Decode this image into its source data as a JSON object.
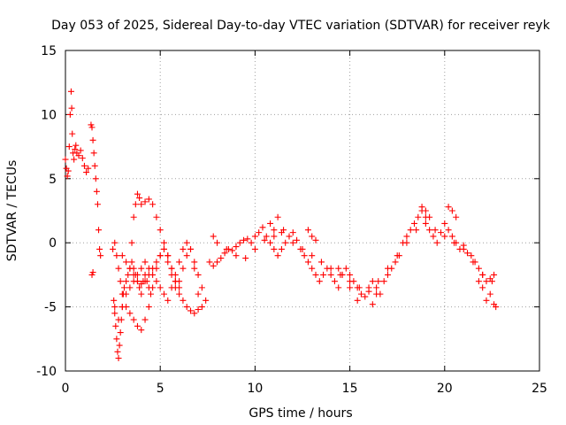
{
  "chart_data": {
    "type": "scatter",
    "title": "Day 053 of 2025, Sidereal Day-to-day VTEC variation (SDTVAR) for receiver reyk",
    "xlabel": "GPS time / hours",
    "ylabel": "SDTVAR / TECUs",
    "xlim": [
      0,
      25
    ],
    "ylim": [
      -10,
      15
    ],
    "xticks": [
      0,
      5,
      10,
      15,
      20,
      25
    ],
    "yticks": [
      -10,
      -5,
      0,
      5,
      10,
      15
    ],
    "grid": true,
    "marker": "+",
    "color": "#ff0000",
    "series": [
      {
        "name": "SDTVAR",
        "x": [
          0.0,
          0.05,
          0.1,
          0.15,
          0.2,
          0.25,
          0.3,
          0.33,
          0.36,
          0.4,
          0.45,
          0.5,
          0.55,
          0.6,
          0.7,
          0.8,
          0.9,
          1.0,
          1.1,
          1.2,
          1.35,
          1.4,
          1.45,
          1.5,
          1.55,
          1.6,
          1.65,
          1.7,
          1.75,
          1.8,
          1.85,
          1.4,
          1.45,
          2.5,
          2.55,
          2.6,
          2.65,
          2.7,
          2.75,
          2.8,
          2.85,
          2.9,
          2.95,
          3.0,
          3.05,
          3.1,
          3.2,
          3.3,
          3.4,
          3.5,
          3.6,
          3.7,
          3.8,
          3.9,
          4.0,
          4.1,
          4.2,
          4.3,
          4.4,
          4.5,
          2.6,
          2.7,
          2.8,
          2.9,
          3.0,
          3.2,
          3.4,
          3.6,
          3.8,
          4.0,
          4.2,
          4.4,
          4.6,
          4.8,
          5.0,
          5.2,
          5.4,
          5.6,
          5.8,
          6.0,
          6.2,
          6.4,
          6.6,
          6.8,
          7.0,
          7.2,
          3.5,
          3.6,
          3.7,
          3.8,
          3.9,
          4.0,
          4.2,
          4.4,
          4.6,
          4.8,
          5.0,
          5.2,
          5.4,
          5.6,
          5.8,
          6.0,
          6.2,
          6.4,
          6.6,
          6.8,
          7.0,
          2.6,
          2.8,
          3.0,
          3.2,
          3.4,
          3.6,
          3.8,
          4.0,
          4.2,
          4.4,
          4.6,
          4.8,
          5.0,
          5.2,
          5.4,
          5.6,
          5.8,
          6.0,
          6.2,
          6.4,
          6.6,
          6.8,
          7.0,
          7.2,
          7.4,
          3.0,
          3.2,
          3.4,
          3.6,
          3.8,
          4.0,
          4.2,
          4.4,
          4.6,
          4.8,
          5.0,
          5.2,
          5.4,
          5.6,
          5.8,
          6.0,
          7.6,
          7.8,
          8.0,
          8.2,
          8.4,
          8.6,
          8.8,
          9.0,
          9.2,
          9.4,
          9.6,
          9.8,
          10.0,
          10.2,
          10.4,
          10.6,
          10.8,
          11.0,
          11.2,
          11.4,
          11.6,
          11.8,
          12.0,
          12.2,
          12.4,
          12.6,
          12.8,
          13.0,
          13.2,
          13.4,
          13.6,
          13.8,
          14.0,
          14.2,
          14.4,
          14.6,
          14.8,
          15.0,
          15.2,
          15.4,
          15.6,
          15.8,
          16.0,
          16.2,
          16.4,
          16.6,
          16.8,
          17.0,
          17.2,
          17.4,
          17.6,
          17.8,
          18.0,
          18.2,
          18.4,
          18.6,
          18.8,
          19.0,
          19.2,
          19.4,
          19.6,
          19.8,
          20.0,
          20.2,
          20.4,
          20.6,
          20.8,
          21.0,
          21.2,
          21.4,
          21.6,
          21.8,
          22.0,
          22.2,
          22.4,
          22.6,
          7.8,
          8.0,
          8.5,
          9.0,
          9.5,
          10.0,
          10.5,
          11.0,
          11.5,
          12.0,
          12.5,
          13.0,
          13.5,
          14.0,
          14.5,
          15.0,
          15.5,
          16.0,
          16.5,
          17.0,
          17.5,
          18.0,
          18.5,
          19.0,
          19.5,
          20.0,
          20.5,
          21.0,
          21.5,
          22.0,
          22.5,
          10.8,
          11.0,
          11.2,
          11.4,
          12.8,
          13.0,
          13.2,
          14.4,
          14.6,
          15.0,
          15.4,
          16.2,
          16.4,
          18.8,
          19.0,
          19.2,
          20.2,
          20.4,
          20.6,
          21.8,
          22.0,
          22.2,
          22.4,
          22.6,
          22.7
        ],
        "y": [
          6.5,
          5.8,
          5.2,
          5.6,
          7.5,
          10.0,
          11.8,
          10.5,
          8.5,
          7.0,
          6.5,
          7.3,
          7.6,
          7.0,
          6.8,
          7.2,
          6.6,
          6.0,
          5.5,
          5.8,
          9.2,
          9.0,
          8.0,
          7.0,
          6.0,
          5.0,
          4.0,
          3.0,
          1.0,
          -0.5,
          -1.0,
          -2.5,
          -2.3,
          -0.5,
          -4.5,
          -5.5,
          -6.5,
          -7.5,
          -8.5,
          -9.0,
          -8.0,
          -7.0,
          -6.0,
          -5.0,
          -4.0,
          -3.5,
          -3.0,
          -2.5,
          -2.0,
          -1.5,
          -2.0,
          -2.5,
          -3.0,
          -3.5,
          -4.0,
          -3.0,
          -2.5,
          -3.0,
          -3.5,
          -4.0,
          0.0,
          -1.0,
          -2.0,
          -3.0,
          -4.0,
          -5.0,
          -5.5,
          -6.0,
          -6.5,
          -6.8,
          -6.0,
          -5.0,
          -3.5,
          -2.0,
          -1.0,
          -0.5,
          -1.5,
          -2.5,
          -3.5,
          -3.0,
          -2.0,
          -1.0,
          -0.5,
          -2.0,
          -4.0,
          -5.0,
          0.0,
          2.0,
          3.0,
          3.8,
          3.5,
          3.0,
          3.2,
          3.4,
          3.0,
          2.0,
          1.0,
          0.0,
          -1.0,
          -2.0,
          -3.0,
          -4.0,
          -4.5,
          -5.0,
          -5.3,
          -5.5,
          -5.2,
          -5.0,
          -6.0,
          -5.0,
          -4.0,
          -3.5,
          -3.0,
          -2.5,
          -2.0,
          -1.5,
          -2.0,
          -2.5,
          -3.0,
          -3.5,
          -4.0,
          -4.5,
          -3.5,
          -2.5,
          -1.5,
          -0.5,
          0.0,
          -0.5,
          -1.5,
          -2.5,
          -3.5,
          -4.5,
          -1.0,
          -1.5,
          -2.0,
          -2.5,
          -3.0,
          -3.2,
          -3.0,
          -2.5,
          -2.0,
          -1.5,
          -1.0,
          -0.5,
          -1.0,
          -2.0,
          -3.0,
          -3.5,
          -1.5,
          -1.8,
          -1.5,
          -1.2,
          -0.8,
          -0.5,
          -0.6,
          -0.3,
          0.0,
          0.2,
          0.3,
          0.0,
          0.5,
          0.8,
          1.2,
          0.5,
          0.0,
          -0.5,
          -1.0,
          -0.5,
          0.0,
          0.5,
          0.8,
          0.2,
          -0.5,
          -1.0,
          -1.5,
          -2.0,
          -2.5,
          -3.0,
          -2.5,
          -2.0,
          -2.5,
          -3.0,
          -3.5,
          -2.5,
          -2.0,
          -2.5,
          -3.0,
          -3.5,
          -4.0,
          -4.2,
          -3.5,
          -3.0,
          -3.5,
          -4.0,
          -3.0,
          -2.5,
          -2.0,
          -1.5,
          -1.0,
          0.0,
          0.5,
          1.0,
          1.5,
          2.0,
          2.5,
          2.0,
          1.0,
          0.5,
          0.0,
          0.8,
          1.5,
          1.0,
          0.5,
          0.0,
          -0.5,
          -0.2,
          -0.8,
          -1.0,
          -1.5,
          -2.0,
          -2.5,
          -3.0,
          -2.8,
          -2.5,
          0.5,
          0.0,
          -0.5,
          -1.0,
          -1.2,
          -0.5,
          0.2,
          0.5,
          1.0,
          0.0,
          -0.5,
          -1.0,
          -1.5,
          -2.0,
          -2.5,
          -3.0,
          -3.5,
          -3.8,
          -3.0,
          -2.0,
          -1.0,
          0.0,
          1.0,
          1.5,
          1.0,
          0.5,
          0.0,
          -0.5,
          -1.5,
          -2.5,
          -3.0,
          1.5,
          1.0,
          2.0,
          0.8,
          1.0,
          0.5,
          0.2,
          -2.0,
          -2.5,
          -3.5,
          -4.5,
          -4.8,
          -4.0,
          2.8,
          2.5,
          2.0,
          2.8,
          2.5,
          2.0,
          -3.0,
          -3.5,
          -4.5,
          -4.0,
          -4.8,
          -5.0
        ]
      }
    ]
  }
}
